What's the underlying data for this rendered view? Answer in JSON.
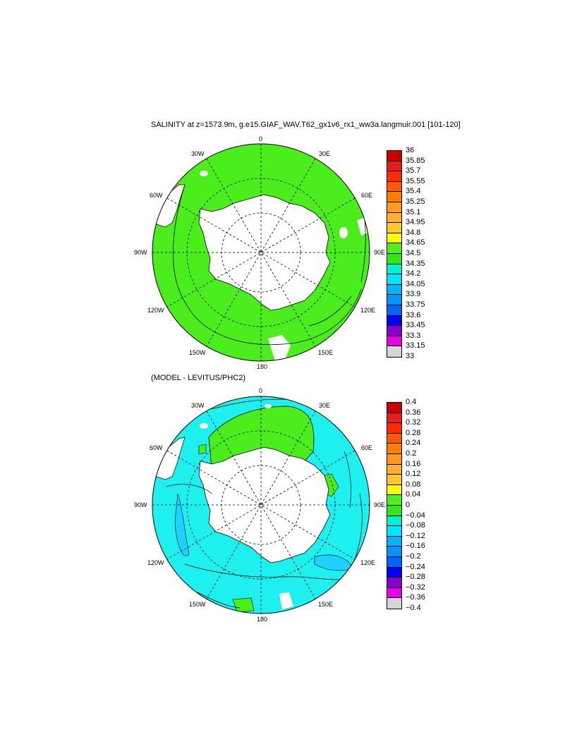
{
  "titles": {
    "main": "SALINITY at z=1573.9m, g.e15.GIAF_WAV.T62_gx1v6_rx1_ww3a.langmuir.001 [101-120]",
    "difference": "(MODEL - LEVITUS/PHC2)"
  },
  "longitude_labels": {
    "l0": "0",
    "l30e": "30E",
    "l60e": "60E",
    "l90e": "90E",
    "l120e": "120E",
    "l150e": "150E",
    "l180": "180",
    "l150w": "150W",
    "l120w": "120W",
    "l90w": "90W",
    "l60w": "60W",
    "l30w": "30W"
  },
  "colorbar_salinity": {
    "ticks": [
      "36",
      "35.85",
      "35.7",
      "35.55",
      "35.4",
      "35.25",
      "35.1",
      "34.95",
      "34.8",
      "34.65",
      "34.5",
      "34.35",
      "34.2",
      "34.05",
      "33.9",
      "33.75",
      "33.6",
      "33.45",
      "33.3",
      "33.15",
      "33"
    ],
    "colors": [
      "#cc0000",
      "#e81c1c",
      "#ff2a00",
      "#ff5a00",
      "#ff7d00",
      "#ff9a1e",
      "#ffb030",
      "#ffc832",
      "#ffff00",
      "#4df01f",
      "#33e61a",
      "#00f2d2",
      "#00e6ff",
      "#00b4ff",
      "#0096ff",
      "#0064ff",
      "#0000ff",
      "#8800cc",
      "#e600e6",
      "#d6d6d6",
      "#6e6e6e"
    ]
  },
  "colorbar_difference": {
    "ticks": [
      "0.4",
      "0.36",
      "0.32",
      "0.28",
      "0.24",
      "0.2",
      "0.16",
      "0.12",
      "0.08",
      "0.04",
      "0",
      "−0.04",
      "−0.08",
      "−0.12",
      "−0.16",
      "−0.2",
      "−0.24",
      "−0.28",
      "−0.32",
      "−0.36",
      "−0.4"
    ],
    "colors": [
      "#cc0000",
      "#e81c1c",
      "#ff2a00",
      "#ff5a00",
      "#ff7d00",
      "#ff9a1e",
      "#ffb030",
      "#ffc832",
      "#ffff00",
      "#4df01f",
      "#33e61a",
      "#00f2d2",
      "#00e6ff",
      "#00b4ff",
      "#0096ff",
      "#0064ff",
      "#0000ff",
      "#8800cc",
      "#e600e6",
      "#d6d6d6",
      "#6e6e6e"
    ]
  },
  "map_colors": {
    "salinity_field": "#4ced1c",
    "difference_field": "#1ef0f0",
    "difference_positive": "#4ced1c",
    "difference_negative": "#1ed2ff",
    "land": "#ffffff"
  }
}
